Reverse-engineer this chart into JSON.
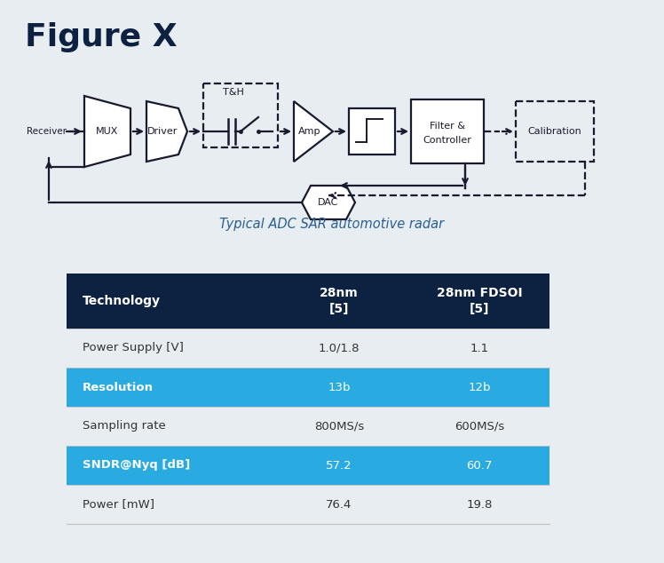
{
  "title": "Figure X",
  "title_color": "#0d2240",
  "title_fontsize": 26,
  "subtitle": "Typical ADC SAR automotive radar",
  "subtitle_color": "#2a5f8f",
  "bg_color": "#e8edf2",
  "table_header_bg": "#0d2240",
  "table_highlight_bg": "#29abe2",
  "table_normal_text": "#333333",
  "diagram_lc": "#1a1a2e",
  "diagram_lw": 1.6,
  "table": {
    "headers": [
      "Technology",
      "28nm\n[5]",
      "28nm FDSOI\n[5]"
    ],
    "rows": [
      {
        "label": "Power Supply [V]",
        "col2": "1.0/1.8",
        "col3": "1.1",
        "highlight": false
      },
      {
        "label": "Resolution",
        "col2": "13b",
        "col3": "12b",
        "highlight": true
      },
      {
        "label": "Sampling rate",
        "col2": "800MS/s",
        "col3": "600MS/s",
        "highlight": false
      },
      {
        "label": "SNDR@Nyq [dB]",
        "col2": "57.2",
        "col3": "60.7",
        "highlight": true
      },
      {
        "label": "Power [mW]",
        "col2": "76.4",
        "col3": "19.8",
        "highlight": false
      }
    ]
  }
}
